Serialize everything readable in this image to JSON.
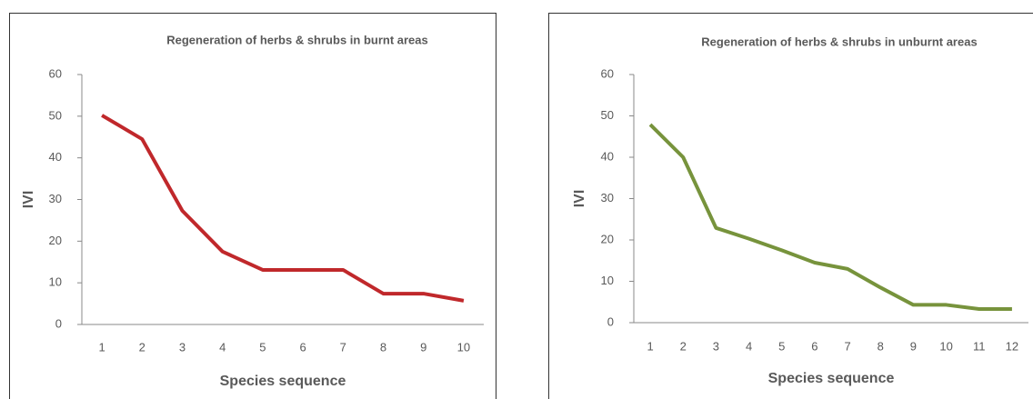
{
  "chart_data": [
    {
      "type": "line",
      "title": "Regeneration of  herbs & shrubs in burnt areas",
      "x_label": "Species sequence",
      "y_label": "IVI",
      "categories": [
        "1",
        "2",
        "3",
        "4",
        "5",
        "6",
        "7",
        "8",
        "9",
        "10"
      ],
      "series": [
        {
          "name": "IVI",
          "color": "#c0282b",
          "values": [
            50.2,
            44.5,
            27.3,
            17.5,
            13.1,
            13.1,
            13.1,
            7.4,
            7.4,
            5.7
          ]
        }
      ],
      "ylim": [
        0,
        60
      ],
      "yticks": [
        0,
        10,
        20,
        30,
        40,
        50,
        60
      ]
    },
    {
      "type": "line",
      "title": "Regeneration of  herbs & shrubs in unburnt areas",
      "x_label": "Species sequence",
      "y_label": "IVI",
      "categories": [
        "1",
        "2",
        "3",
        "4",
        "5",
        "6",
        "7",
        "8",
        "9",
        "10",
        "11",
        "12"
      ],
      "series": [
        {
          "name": "IVI",
          "color": "#77933c",
          "values": [
            47.9,
            40,
            22.9,
            20.3,
            17.5,
            14.5,
            13,
            8.5,
            4.3,
            4.3,
            3.3,
            3.3
          ]
        }
      ],
      "ylim": [
        0,
        60
      ],
      "yticks": [
        0,
        10,
        20,
        30,
        40,
        50,
        60
      ]
    }
  ]
}
